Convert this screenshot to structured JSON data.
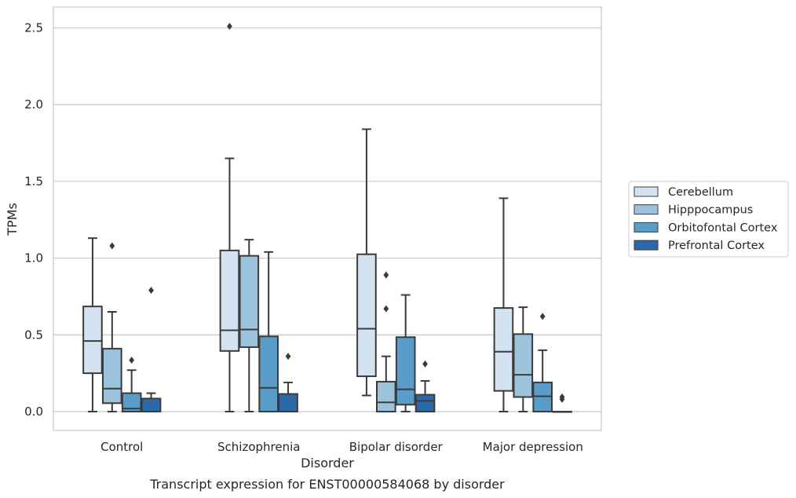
{
  "chart_data": {
    "type": "box",
    "xlabel": "Disorder",
    "ylabel": "TPMs",
    "caption": "Transcript expression for ENST00000584068 by disorder",
    "ylim": [
      -0.12,
      2.65
    ],
    "yticks": [
      "0.0",
      "0.5",
      "1.0",
      "1.5",
      "2.0",
      "2.5"
    ],
    "grid": "horizontal",
    "legend_position": "right",
    "categories": [
      "Control",
      "Schizophrenia",
      "Bipolar disorder",
      "Major depression"
    ],
    "series": [
      {
        "name": "Cerebellum",
        "color": "#d4e3f1",
        "boxes": [
          {
            "whislo": 0.0,
            "q1": 0.25,
            "med": 0.46,
            "q3": 0.685,
            "whishi": 1.13,
            "fliers": []
          },
          {
            "whislo": 0.0,
            "q1": 0.395,
            "med": 0.53,
            "q3": 1.05,
            "whishi": 1.65,
            "fliers": [
              2.51
            ]
          },
          {
            "whislo": 0.105,
            "q1": 0.23,
            "med": 0.54,
            "q3": 1.025,
            "whishi": 1.84,
            "fliers": []
          },
          {
            "whislo": 0.0,
            "q1": 0.135,
            "med": 0.39,
            "q3": 0.675,
            "whishi": 1.39,
            "fliers": []
          }
        ]
      },
      {
        "name": "Hipppocampus",
        "color": "#9bc4dc",
        "boxes": [
          {
            "whislo": 0.0,
            "q1": 0.055,
            "med": 0.15,
            "q3": 0.41,
            "whishi": 0.65,
            "fliers": [
              1.08
            ]
          },
          {
            "whislo": 0.0,
            "q1": 0.42,
            "med": 0.535,
            "q3": 1.015,
            "whishi": 1.12,
            "fliers": []
          },
          {
            "whislo": 0.0,
            "q1": 0.0,
            "med": 0.06,
            "q3": 0.195,
            "whishi": 0.36,
            "fliers": [
              0.89,
              0.67
            ]
          },
          {
            "whislo": 0.0,
            "q1": 0.095,
            "med": 0.24,
            "q3": 0.505,
            "whishi": 0.68,
            "fliers": []
          }
        ]
      },
      {
        "name": "Orbitofontal Cortex",
        "color": "#5a9cc8",
        "boxes": [
          {
            "whislo": 0.0,
            "q1": 0.0,
            "med": 0.02,
            "q3": 0.12,
            "whishi": 0.27,
            "fliers": [
              0.335
            ]
          },
          {
            "whislo": 0.0,
            "q1": 0.0,
            "med": 0.155,
            "q3": 0.49,
            "whishi": 1.04,
            "fliers": []
          },
          {
            "whislo": 0.0,
            "q1": 0.045,
            "med": 0.145,
            "q3": 0.485,
            "whishi": 0.76,
            "fliers": []
          },
          {
            "whislo": 0.0,
            "q1": 0.0,
            "med": 0.1,
            "q3": 0.19,
            "whishi": 0.4,
            "fliers": [
              0.62
            ]
          }
        ]
      },
      {
        "name": "Prefrontal Cortex",
        "color": "#2c6aa7",
        "boxes": [
          {
            "whislo": 0.0,
            "q1": 0.0,
            "med": 0.0,
            "q3": 0.085,
            "whishi": 0.12,
            "fliers": [
              0.79
            ]
          },
          {
            "whislo": 0.0,
            "q1": 0.0,
            "med": 0.0,
            "q3": 0.115,
            "whishi": 0.19,
            "fliers": [
              0.36
            ]
          },
          {
            "whislo": 0.0,
            "q1": 0.0,
            "med": 0.07,
            "q3": 0.11,
            "whishi": 0.2,
            "fliers": [
              0.31
            ]
          },
          {
            "whislo": 0.0,
            "q1": 0.0,
            "med": 0.0,
            "q3": 0.0,
            "whishi": 0.0,
            "fliers": [
              0.095,
              0.08
            ]
          }
        ]
      }
    ]
  }
}
